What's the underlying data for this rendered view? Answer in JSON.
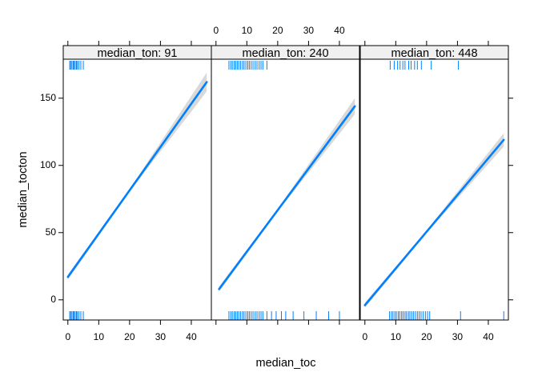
{
  "chart_data": {
    "type": "line",
    "title": "",
    "xlabel": "median_toc",
    "ylabel": "median_tocton",
    "xlim": [
      -1.5,
      46.5
    ],
    "ylim": [
      -15,
      179
    ],
    "x_ticks": [
      0,
      10,
      20,
      30,
      40
    ],
    "y_ticks": [
      0,
      50,
      100,
      150
    ],
    "colors": {
      "line": "#0080ff",
      "band": "#d9d9d9",
      "rug": "#0080ff",
      "strip": "#f0f0f0",
      "axis": "#000000"
    },
    "panels": [
      {
        "strip_label": "median_ton: 91",
        "line": {
          "x": [
            0,
            45
          ],
          "y": [
            17,
            162
          ]
        },
        "band_halfwidth": {
          "x": [
            0,
            20,
            45
          ],
          "w": [
            2,
            1,
            7
          ]
        },
        "rug_top": [
          0.6,
          0.9,
          1.3,
          1.7,
          2.0,
          2.4,
          2.8,
          3.1,
          3.6,
          4.2,
          5.0
        ],
        "rug_bottom": [
          0.6,
          0.9,
          1.3,
          1.7,
          2.0,
          2.4,
          2.8,
          3.1,
          3.6,
          4.2,
          5.0
        ]
      },
      {
        "strip_label": "median_ton: 240",
        "line": {
          "x": [
            1,
            45
          ],
          "y": [
            8,
            144
          ]
        },
        "band_halfwidth": {
          "x": [
            1,
            20,
            45
          ],
          "w": [
            2,
            1,
            6
          ]
        },
        "rug_top": [
          4.2,
          4.8,
          5.3,
          5.9,
          6.4,
          6.9,
          7.4,
          8.0,
          8.6,
          9.1,
          9.7,
          10.3,
          10.8,
          11.4,
          12.0,
          12.7,
          13.3,
          14.0,
          14.6,
          15.2,
          16.5
        ],
        "rug_bottom": [
          4.2,
          4.8,
          5.3,
          5.9,
          6.4,
          6.9,
          7.4,
          8.0,
          8.6,
          9.1,
          9.7,
          10.3,
          10.8,
          11.4,
          12.0,
          12.7,
          13.3,
          14.0,
          14.6,
          15.2,
          16.5,
          18.0,
          19.5,
          21.2,
          22.6,
          25.0,
          28.5,
          32.5,
          36.5,
          40.0
        ]
      },
      {
        "strip_label": "median_ton: 448",
        "line": {
          "x": [
            0,
            45
          ],
          "y": [
            -4,
            119
          ]
        },
        "band_halfwidth": {
          "x": [
            0,
            20,
            45
          ],
          "w": [
            2,
            1,
            5
          ]
        },
        "rug_top": [
          8.2,
          9.5,
          10.6,
          11.4,
          12.3,
          13.0,
          14.2,
          15.0,
          16.1,
          17.0,
          18.3,
          21.5,
          30.3
        ],
        "rug_bottom": [
          8.0,
          8.6,
          9.1,
          9.7,
          10.2,
          10.8,
          11.3,
          11.9,
          12.4,
          13.0,
          13.5,
          14.1,
          14.6,
          15.2,
          15.8,
          16.4,
          17.0,
          17.6,
          18.2,
          18.9,
          19.6,
          20.3,
          21.0,
          31.0,
          45.0
        ]
      }
    ]
  }
}
